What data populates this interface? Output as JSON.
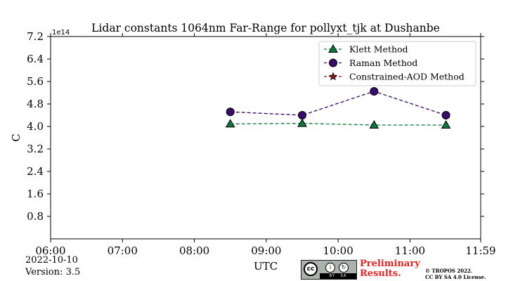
{
  "chart_data": {
    "type": "line",
    "title": "Lidar constants 1064nm Far-Range for pollyxt_tjk at Dushanbe",
    "xlabel": "UTC",
    "ylabel": "C",
    "y_offset_text": "1e14",
    "x_ticks": [
      "06:00",
      "07:00",
      "08:00",
      "09:00",
      "10:00",
      "11:00",
      "11:59"
    ],
    "y_ticks": [
      "0.8",
      "1.6",
      "2.4",
      "3.2",
      "4.0",
      "4.8",
      "5.6",
      "6.4",
      "7.2"
    ],
    "xlim": [
      "06:00",
      "11:59"
    ],
    "ylim": [
      0.0,
      7.2
    ],
    "y_unit_multiplier": 100000000000000.0,
    "grid": false,
    "legend_position": "top-right",
    "series": [
      {
        "name": "Klett Method",
        "color": "#0a7a3a",
        "marker": "triangle",
        "line_style": "dashed",
        "x": [
          "08:30",
          "09:30",
          "10:30",
          "11:30"
        ],
        "y": [
          4.09,
          4.11,
          4.05,
          4.05
        ]
      },
      {
        "name": "Raman Method",
        "color": "#3a0a6e",
        "marker": "circle",
        "line_style": "dashed",
        "x": [
          "08:30",
          "09:30",
          "10:30",
          "11:30"
        ],
        "y": [
          4.52,
          4.4,
          5.25,
          4.4
        ]
      },
      {
        "name": "Constrained-AOD Method",
        "color": "#8b1a1a",
        "marker": "star",
        "line_style": "dashed",
        "x": [],
        "y": []
      }
    ]
  },
  "footer": {
    "date": "2022-10-10",
    "version": "Version: 3.5",
    "preliminary_line1": "Preliminary",
    "preliminary_line2": "Results.",
    "copyright_line1": "© TROPOS 2022.",
    "copyright_line2": "CC BY SA 4.0 License.",
    "license_icon": "cc-by-sa-icon",
    "license_by": "BY",
    "license_sa": "SA",
    "license_cc": "cc"
  }
}
